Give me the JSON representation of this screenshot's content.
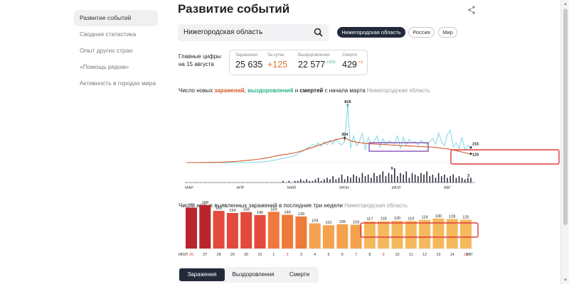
{
  "sidebar": {
    "items": [
      {
        "label": "Развитие событий",
        "active": true
      },
      {
        "label": "Сводная статистика",
        "active": false
      },
      {
        "label": "Опыт других стран",
        "active": false
      },
      {
        "label": "«Помощь рядом»",
        "active": false
      },
      {
        "label": "Активность в городах мира",
        "active": false
      }
    ]
  },
  "header": {
    "title": "Развитие событий",
    "share_icon": "share-icon"
  },
  "search": {
    "value": "Нижегородская область",
    "icon": "search-icon"
  },
  "region_pills": [
    {
      "label": "Нижегородская область",
      "active": true
    },
    {
      "label": "Россия",
      "active": false
    },
    {
      "label": "Мир",
      "active": false
    }
  ],
  "main_figures": {
    "label_line1": "Главные цифры",
    "label_line2": "на 15 августа",
    "stats": [
      {
        "label": "Заражения",
        "value": "25 635",
        "delta": "",
        "color": "#222222"
      },
      {
        "label": "За сутки",
        "value": "+125",
        "delta": "",
        "color": "#e5732f"
      },
      {
        "label": "Выздоровления",
        "value": "22 577",
        "delta": "+215",
        "color": "#222222",
        "delta_color": "#26b08a"
      },
      {
        "label": "Смерти",
        "value": "429",
        "delta": "+3",
        "color": "#222222",
        "delta_color": "#e5732f"
      }
    ]
  },
  "chart1_title": {
    "prefix": "Число новых ",
    "infections": "заражений",
    "comma": ", ",
    "recoveries": "выздоровлений",
    "and": " и ",
    "deaths": "смертей",
    "suffix": " с начала марта",
    "region": "Нижегородская область"
  },
  "chart2_title": {
    "prefix": "Число новых выявленных заражений в последние три недели",
    "region": "Нижегородская область"
  },
  "tabs": [
    {
      "label": "Заражения",
      "active": true
    },
    {
      "label": "Выздоровления",
      "active": false
    },
    {
      "label": "Смерти",
      "active": false
    }
  ],
  "colors": {
    "infections": "#d4572a",
    "recoveries": "#7ed8e6",
    "recoveries_label": "#26b08a",
    "highlight": "#e03a3a",
    "selection": "#8b4fb5"
  },
  "chart_data": [
    {
      "type": "line",
      "title": "Число новых заражений, выздоровлений и смертей с начала марта",
      "x_ticks": [
        "МАР",
        "АПР",
        "МАЙ",
        "ИЮН",
        "ИЮЛ",
        "АВГ"
      ],
      "annotations": [
        {
          "label": "818",
          "series": "Выздоровления",
          "value": 818
        },
        {
          "label": "354",
          "series": "Заражения",
          "value": 354
        },
        {
          "label": "215",
          "series": "Выздоровления",
          "value": 215
        },
        {
          "label": "125",
          "series": "Заражения",
          "value": 125
        },
        {
          "label": "9",
          "series": "Смерти",
          "value": 9
        },
        {
          "label": "3",
          "series": "Смерти",
          "value": 3
        }
      ],
      "series": [
        {
          "name": "заражений",
          "values": [
            0,
            0,
            0,
            0,
            0,
            1,
            1,
            2,
            2,
            3,
            4,
            5,
            6,
            8,
            10,
            12,
            14,
            16,
            20,
            24,
            28,
            32,
            36,
            40,
            45,
            50,
            58,
            65,
            72,
            80,
            90,
            98,
            105,
            112,
            118,
            125,
            130,
            140,
            150,
            160,
            175,
            190,
            205,
            215,
            230,
            245,
            260,
            275,
            290,
            300,
            310,
            325,
            335,
            345,
            354,
            330,
            310,
            300,
            290,
            285,
            280,
            275,
            270,
            268,
            265,
            262,
            260,
            258,
            255,
            252,
            250,
            248,
            245,
            242,
            240,
            238,
            236,
            234,
            232,
            230,
            228,
            226,
            224,
            222,
            220,
            215,
            210,
            205,
            200,
            195,
            190,
            180,
            170,
            160,
            150,
            140,
            130,
            125
          ]
        },
        {
          "name": "выздоровлений",
          "values": [
            0,
            0,
            0,
            0,
            0,
            0,
            0,
            0,
            0,
            0,
            0,
            0,
            0,
            0,
            0,
            0,
            0,
            0,
            0,
            0,
            0,
            1,
            2,
            3,
            5,
            8,
            10,
            15,
            20,
            25,
            35,
            40,
            50,
            60,
            70,
            80,
            90,
            100,
            120,
            150,
            170,
            200,
            220,
            260,
            240,
            280,
            230,
            300,
            250,
            320,
            260,
            340,
            280,
            250,
            300,
            818,
            200,
            380,
            240,
            300,
            420,
            180,
            360,
            260,
            300,
            380,
            220,
            340,
            260,
            310,
            290,
            270,
            380,
            200,
            360,
            250,
            330,
            280,
            300,
            250,
            320,
            280,
            260,
            300,
            340,
            260,
            420,
            300,
            240,
            400,
            460,
            220,
            280,
            200,
            360,
            180,
            240,
            215
          ]
        },
        {
          "name": "смертей",
          "values": [
            0,
            0,
            0,
            0,
            0,
            0,
            0,
            0,
            0,
            0,
            0,
            0,
            0,
            0,
            0,
            0,
            0,
            0,
            0,
            0,
            0,
            0,
            0,
            0,
            0,
            0,
            0,
            0,
            0,
            0,
            0,
            0,
            0,
            1,
            0,
            1,
            0,
            1,
            1,
            2,
            1,
            2,
            1,
            1,
            2,
            3,
            1,
            2,
            3,
            2,
            4,
            2,
            3,
            5,
            2,
            4,
            3,
            5,
            4,
            3,
            6,
            4,
            5,
            3,
            6,
            4,
            5,
            7,
            4,
            6,
            5,
            9,
            4,
            6,
            5,
            7,
            3,
            6,
            5,
            4,
            6,
            5,
            7,
            4,
            5,
            3,
            6,
            4,
            5,
            3,
            4,
            5,
            3,
            4,
            3,
            2,
            3,
            3
          ]
        }
      ]
    },
    {
      "type": "bar",
      "title": "Число новых выявленных заражений в последние три недели",
      "categories": [
        "26",
        "27",
        "28",
        "29",
        "30",
        "31",
        "1",
        "2",
        "3",
        "4",
        "5",
        "6",
        "7",
        "8",
        "9",
        "10",
        "11",
        "12",
        "13",
        "14",
        "15"
      ],
      "values": [
        177,
        188,
        163,
        154,
        158,
        145,
        159,
        146,
        139,
        109,
        101,
        105,
        103,
        117,
        118,
        120,
        119,
        124,
        130,
        128,
        125
      ],
      "month_labels": {
        "start": "ИЮЛ",
        "end": "АВГ"
      },
      "red_tick_labels": [
        "26",
        "2",
        "9",
        "15"
      ]
    }
  ]
}
